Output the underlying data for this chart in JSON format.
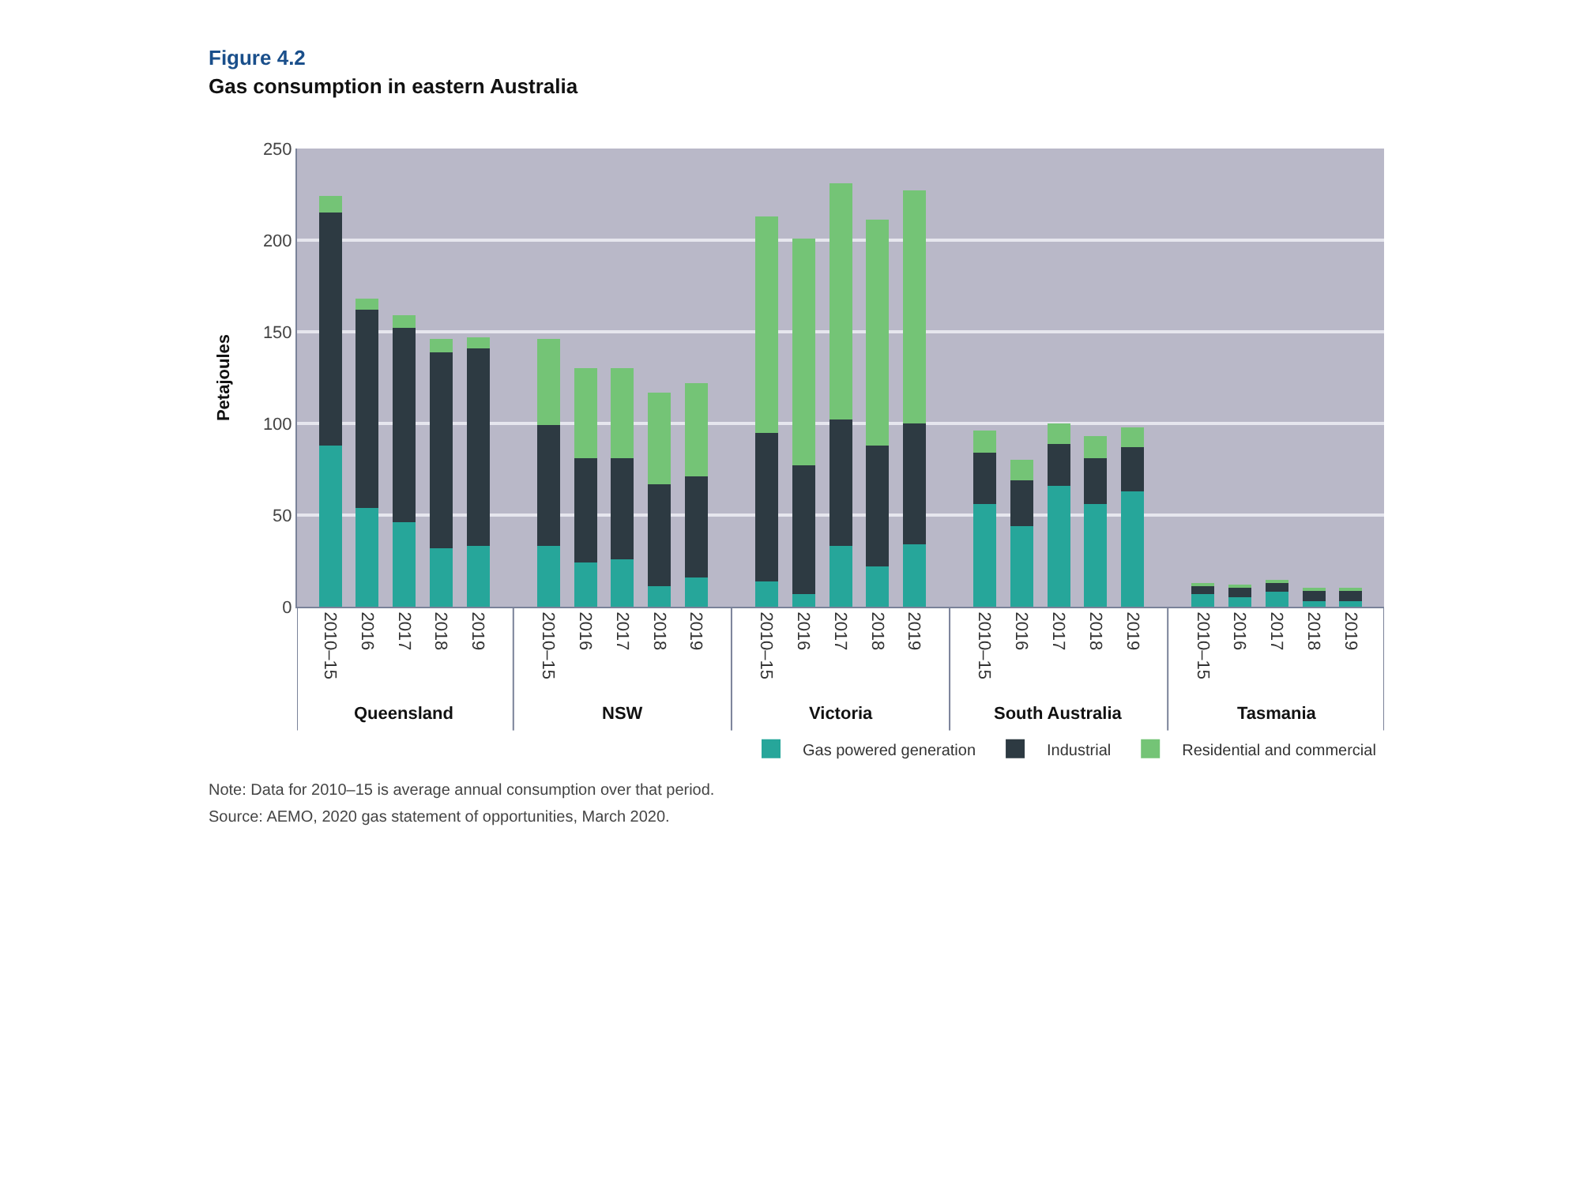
{
  "chart_data": {
    "type": "bar",
    "title": "Figure 4.2",
    "subtitle": "Gas consumption in eastern Australia",
    "ylabel": "Petajoules",
    "categories": [
      "2010–15",
      "2016",
      "2017",
      "2018",
      "2019",
      "2010–15",
      "2016",
      "2017",
      "2018",
      "2019",
      "2010–15",
      "2016",
      "2017",
      "2018",
      "2019",
      "2010–15",
      "2016",
      "2017",
      "2018",
      "2019",
      "2010–15",
      "2016",
      "2017",
      "2018",
      "2019"
    ],
    "series": [
      {
        "name": "Gas powered generation",
        "color": "#26a69a",
        "values": [
          88,
          54,
          46,
          32,
          33,
          33,
          24,
          26,
          11,
          16,
          14,
          7,
          33,
          22,
          34,
          56,
          44,
          66,
          56,
          63,
          7,
          5,
          8,
          3,
          3
        ]
      },
      {
        "name": "Industrial",
        "color": "#2d3a42",
        "values": [
          127,
          108,
          106,
          107,
          108,
          66,
          57,
          55,
          56,
          55,
          81,
          70,
          69,
          66,
          66,
          28,
          25,
          23,
          25,
          24,
          4,
          6,
          5,
          6,
          6
        ]
      },
      {
        "name": "Residential and commercial",
        "color": "#74c476",
        "values": [
          9,
          6,
          7,
          7,
          6,
          47,
          49,
          49,
          50,
          51,
          118,
          124,
          129,
          123,
          127,
          12,
          11,
          11,
          12,
          11,
          2,
          1,
          1,
          1,
          1
        ]
      }
    ],
    "stacked": true,
    "ylim": [
      0,
      250
    ],
    "yticks": [
      0,
      50,
      100,
      150,
      200,
      250
    ],
    "grid": "y",
    "legend": "bottom right",
    "annotations": [
      "Queensland",
      "NSW",
      "Victoria",
      "South Australia",
      "Tasmania",
      "Note: Data for 2010–15 is average annual consumption over that period.",
      "Source: AEMO, 2020 gas statement of opportunities, March 2020."
    ]
  }
}
